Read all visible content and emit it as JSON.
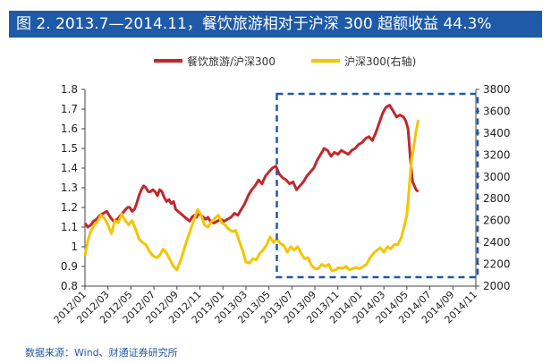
{
  "header": {
    "title": "图 2. 2013.7—2014.11，餐饮旅游相对于沪深 300 超额收益 44.3%"
  },
  "footer": {
    "source": "数据来源：Wind、财通证券研究所"
  },
  "colors": {
    "title_bg": "#1f5aa6",
    "series_left": "#c0282d",
    "series_right": "#f5c400",
    "highlight": "#1f5aa6"
  },
  "chart_data": {
    "type": "line",
    "x_ticks": [
      "2012/01",
      "2012/03",
      "2012/05",
      "2012/07",
      "2012/09",
      "2012/11",
      "2013/01",
      "2013/03",
      "2013/05",
      "2013/07",
      "2013/09",
      "2013/11",
      "2014/01",
      "2014/03",
      "2014/05",
      "2014/07",
      "2014/09",
      "2014/11"
    ],
    "y_left": {
      "range": [
        0.8,
        1.8
      ],
      "ticks": [
        "0.8",
        "0.9",
        "1",
        "1.1",
        "1.2",
        "1.3",
        "1.4",
        "1.5",
        "1.6",
        "1.7",
        "1.8"
      ]
    },
    "y_right": {
      "range": [
        2000,
        3800
      ],
      "ticks": [
        "2000",
        "2200",
        "2400",
        "2600",
        "2800",
        "3000",
        "3200",
        "3400",
        "3600",
        "3800"
      ]
    },
    "legend": {
      "placement": "top"
    },
    "highlight_box": {
      "x_start": "2013/06",
      "x_end": "2014/11",
      "style": "dashed"
    },
    "series": [
      {
        "name": "餐饮旅游/沪深300",
        "axis": "left",
        "points": [
          [
            0,
            1.12
          ],
          [
            0.25,
            1.1
          ],
          [
            0.5,
            1.11
          ],
          [
            0.75,
            1.13
          ],
          [
            1,
            1.14
          ],
          [
            1.3,
            1.16
          ],
          [
            1.6,
            1.17
          ],
          [
            1.9,
            1.18
          ],
          [
            2.2,
            1.15
          ],
          [
            2.5,
            1.13
          ],
          [
            2.8,
            1.14
          ],
          [
            3.1,
            1.16
          ],
          [
            3.4,
            1.18
          ],
          [
            3.7,
            1.2
          ],
          [
            3.9,
            1.2
          ],
          [
            4.1,
            1.18
          ],
          [
            4.3,
            1.19
          ],
          [
            4.5,
            1.22
          ],
          [
            4.7,
            1.26
          ],
          [
            4.9,
            1.29
          ],
          [
            5.1,
            1.31
          ],
          [
            5.3,
            1.3
          ],
          [
            5.5,
            1.28
          ],
          [
            5.7,
            1.28
          ],
          [
            5.9,
            1.29
          ],
          [
            6.1,
            1.28
          ],
          [
            6.3,
            1.26
          ],
          [
            6.5,
            1.29
          ],
          [
            6.7,
            1.28
          ],
          [
            6.9,
            1.25
          ],
          [
            7.1,
            1.23
          ],
          [
            7.3,
            1.24
          ],
          [
            7.5,
            1.22
          ],
          [
            7.7,
            1.23
          ],
          [
            7.9,
            1.19
          ],
          [
            8.1,
            1.18
          ],
          [
            8.3,
            1.17
          ],
          [
            8.5,
            1.16
          ],
          [
            8.7,
            1.15
          ],
          [
            8.9,
            1.14
          ],
          [
            9.1,
            1.13
          ],
          [
            9.3,
            1.15
          ],
          [
            9.5,
            1.16
          ],
          [
            9.7,
            1.15
          ],
          [
            9.9,
            1.17
          ],
          [
            10.1,
            1.16
          ],
          [
            10.3,
            1.15
          ],
          [
            10.5,
            1.14
          ],
          [
            10.7,
            1.15
          ],
          [
            10.9,
            1.13
          ],
          [
            11.2,
            1.12
          ],
          [
            11.5,
            1.13
          ],
          [
            11.8,
            1.14
          ],
          [
            12.1,
            1.13
          ],
          [
            12.4,
            1.14
          ],
          [
            12.7,
            1.15
          ],
          [
            13.0,
            1.17
          ],
          [
            13.3,
            1.16
          ],
          [
            13.6,
            1.19
          ],
          [
            13.9,
            1.22
          ],
          [
            14.2,
            1.26
          ],
          [
            14.5,
            1.29
          ],
          [
            14.8,
            1.31
          ],
          [
            15.1,
            1.34
          ],
          [
            15.4,
            1.32
          ],
          [
            15.7,
            1.36
          ],
          [
            16.0,
            1.38
          ],
          [
            16.3,
            1.4
          ],
          [
            16.6,
            1.41
          ],
          [
            16.9,
            1.37
          ],
          [
            17.2,
            1.35
          ],
          [
            17.5,
            1.34
          ],
          [
            17.8,
            1.32
          ],
          [
            18.1,
            1.33
          ],
          [
            18.4,
            1.29
          ],
          [
            18.7,
            1.31
          ],
          [
            19.0,
            1.33
          ],
          [
            19.3,
            1.36
          ],
          [
            19.6,
            1.38
          ],
          [
            19.9,
            1.4
          ],
          [
            20.2,
            1.44
          ],
          [
            20.5,
            1.47
          ],
          [
            20.8,
            1.5
          ],
          [
            21.1,
            1.49
          ],
          [
            21.4,
            1.46
          ],
          [
            21.7,
            1.48
          ],
          [
            22.0,
            1.47
          ],
          [
            22.3,
            1.49
          ],
          [
            22.6,
            1.48
          ],
          [
            22.9,
            1.47
          ],
          [
            23.2,
            1.49
          ],
          [
            23.5,
            1.5
          ],
          [
            23.8,
            1.52
          ],
          [
            24.1,
            1.53
          ],
          [
            24.4,
            1.55
          ],
          [
            24.7,
            1.56
          ],
          [
            25.0,
            1.54
          ],
          [
            25.3,
            1.58
          ],
          [
            25.6,
            1.63
          ],
          [
            25.9,
            1.68
          ],
          [
            26.2,
            1.71
          ],
          [
            26.5,
            1.72
          ],
          [
            26.8,
            1.69
          ],
          [
            27.1,
            1.66
          ],
          [
            27.4,
            1.67
          ],
          [
            27.7,
            1.66
          ],
          [
            27.9,
            1.64
          ],
          [
            28.1,
            1.6
          ],
          [
            28.3,
            1.45
          ],
          [
            28.5,
            1.33
          ],
          [
            28.8,
            1.29
          ],
          [
            29.0,
            1.28
          ]
        ]
      },
      {
        "name": "沪深300(右轴)",
        "axis": "right",
        "points": [
          [
            0,
            2280
          ],
          [
            0.25,
            2420
          ],
          [
            0.5,
            2500
          ],
          [
            0.8,
            2560
          ],
          [
            1.1,
            2590
          ],
          [
            1.4,
            2650
          ],
          [
            1.7,
            2620
          ],
          [
            2.0,
            2560
          ],
          [
            2.3,
            2480
          ],
          [
            2.6,
            2600
          ],
          [
            2.9,
            2580
          ],
          [
            3.2,
            2660
          ],
          [
            3.5,
            2600
          ],
          [
            3.8,
            2560
          ],
          [
            4.1,
            2600
          ],
          [
            4.4,
            2520
          ],
          [
            4.7,
            2430
          ],
          [
            5.0,
            2400
          ],
          [
            5.3,
            2380
          ],
          [
            5.6,
            2320
          ],
          [
            5.9,
            2280
          ],
          [
            6.2,
            2260
          ],
          [
            6.5,
            2280
          ],
          [
            6.8,
            2340
          ],
          [
            7.1,
            2300
          ],
          [
            7.4,
            2240
          ],
          [
            7.7,
            2180
          ],
          [
            8.0,
            2150
          ],
          [
            8.3,
            2230
          ],
          [
            8.6,
            2330
          ],
          [
            8.9,
            2430
          ],
          [
            9.2,
            2520
          ],
          [
            9.5,
            2610
          ],
          [
            9.8,
            2700
          ],
          [
            10.1,
            2650
          ],
          [
            10.4,
            2560
          ],
          [
            10.7,
            2540
          ],
          [
            11.0,
            2590
          ],
          [
            11.3,
            2620
          ],
          [
            11.6,
            2650
          ],
          [
            11.9,
            2580
          ],
          [
            12.2,
            2560
          ],
          [
            12.5,
            2520
          ],
          [
            12.8,
            2500
          ],
          [
            13.1,
            2510
          ],
          [
            13.4,
            2420
          ],
          [
            13.7,
            2330
          ],
          [
            14.0,
            2220
          ],
          [
            14.3,
            2210
          ],
          [
            14.6,
            2250
          ],
          [
            14.9,
            2240
          ],
          [
            15.2,
            2300
          ],
          [
            15.5,
            2330
          ],
          [
            15.8,
            2380
          ],
          [
            16.1,
            2450
          ],
          [
            16.4,
            2400
          ],
          [
            16.7,
            2430
          ],
          [
            17.0,
            2390
          ],
          [
            17.3,
            2370
          ],
          [
            17.6,
            2310
          ],
          [
            17.9,
            2360
          ],
          [
            18.2,
            2330
          ],
          [
            18.5,
            2360
          ],
          [
            18.8,
            2300
          ],
          [
            19.1,
            2250
          ],
          [
            19.4,
            2260
          ],
          [
            19.7,
            2190
          ],
          [
            20.0,
            2160
          ],
          [
            20.3,
            2160
          ],
          [
            20.6,
            2200
          ],
          [
            20.9,
            2180
          ],
          [
            21.2,
            2200
          ],
          [
            21.5,
            2140
          ],
          [
            21.8,
            2150
          ],
          [
            22.1,
            2170
          ],
          [
            22.4,
            2160
          ],
          [
            22.7,
            2180
          ],
          [
            23.0,
            2150
          ],
          [
            23.3,
            2160
          ],
          [
            23.6,
            2170
          ],
          [
            23.9,
            2160
          ],
          [
            24.2,
            2180
          ],
          [
            24.5,
            2200
          ],
          [
            24.8,
            2260
          ],
          [
            25.1,
            2300
          ],
          [
            25.4,
            2330
          ],
          [
            25.7,
            2350
          ],
          [
            26.0,
            2310
          ],
          [
            26.3,
            2360
          ],
          [
            26.6,
            2340
          ],
          [
            26.9,
            2380
          ],
          [
            27.2,
            2380
          ],
          [
            27.5,
            2440
          ],
          [
            27.8,
            2560
          ],
          [
            28.0,
            2650
          ],
          [
            28.2,
            2900
          ],
          [
            28.4,
            3150
          ],
          [
            28.6,
            3280
          ],
          [
            28.8,
            3420
          ],
          [
            29.0,
            3520
          ]
        ]
      }
    ]
  }
}
